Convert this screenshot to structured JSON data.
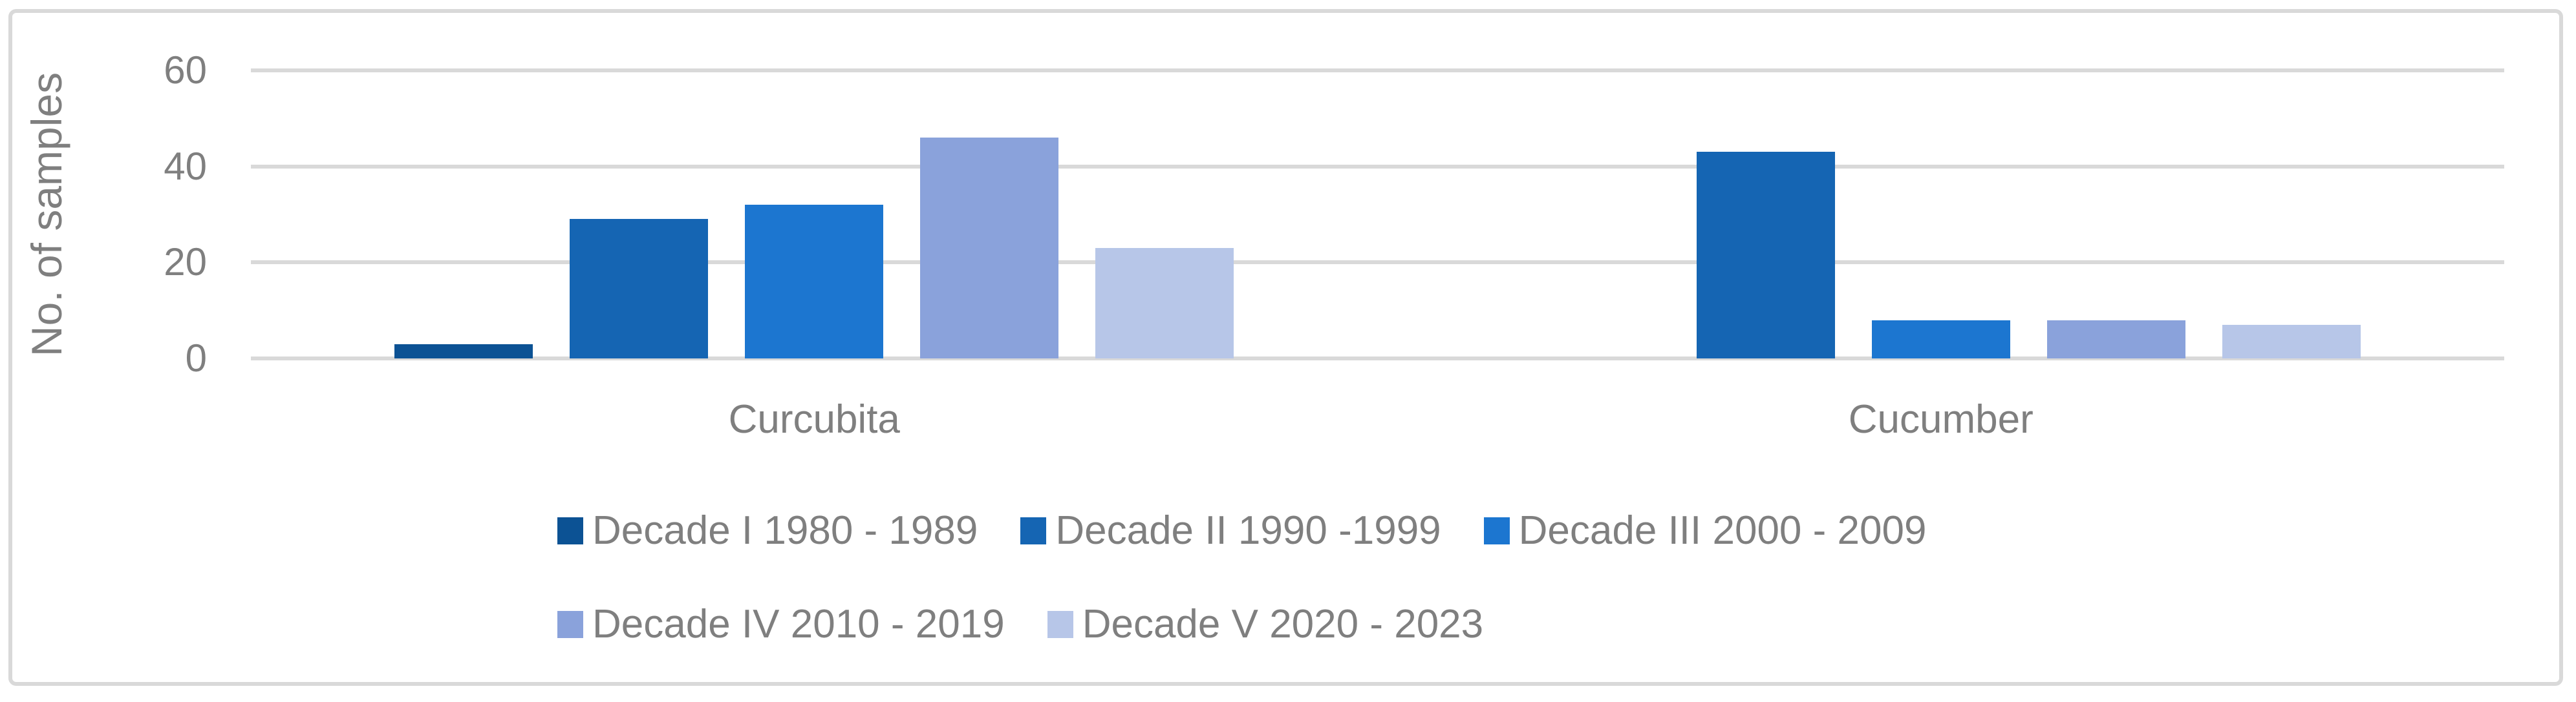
{
  "chart_data": {
    "type": "bar",
    "title": "",
    "xlabel": "",
    "ylabel": "No. of samples",
    "categories": [
      "Curcubita",
      "Cucumber"
    ],
    "series": [
      {
        "name": "Decade I 1980 - 1989",
        "color": "#0C5294",
        "values": [
          3,
          0
        ]
      },
      {
        "name": "Decade II 1990 -1999",
        "color": "#1565B3",
        "values": [
          29,
          43
        ]
      },
      {
        "name": "Decade III 2000 - 2009",
        "color": "#1C76D0",
        "values": [
          32,
          8
        ]
      },
      {
        "name": "Decade IV 2010 - 2019",
        "color": "#8AA2DB",
        "values": [
          46,
          8
        ]
      },
      {
        "name": "Decade V 2020 - 2023",
        "color": "#B7C6E8",
        "values": [
          23,
          7
        ]
      }
    ],
    "y_ticks": [
      0,
      20,
      40,
      60
    ],
    "ylim": [
      0,
      60
    ],
    "grid": true,
    "legend_position": "bottom",
    "legend_rows": [
      [
        0,
        1,
        2
      ],
      [
        3,
        4
      ]
    ]
  },
  "colors": {
    "gridline": "#D9D9D9",
    "frame": "#D9D9D9",
    "text": "#7F7F7F"
  }
}
